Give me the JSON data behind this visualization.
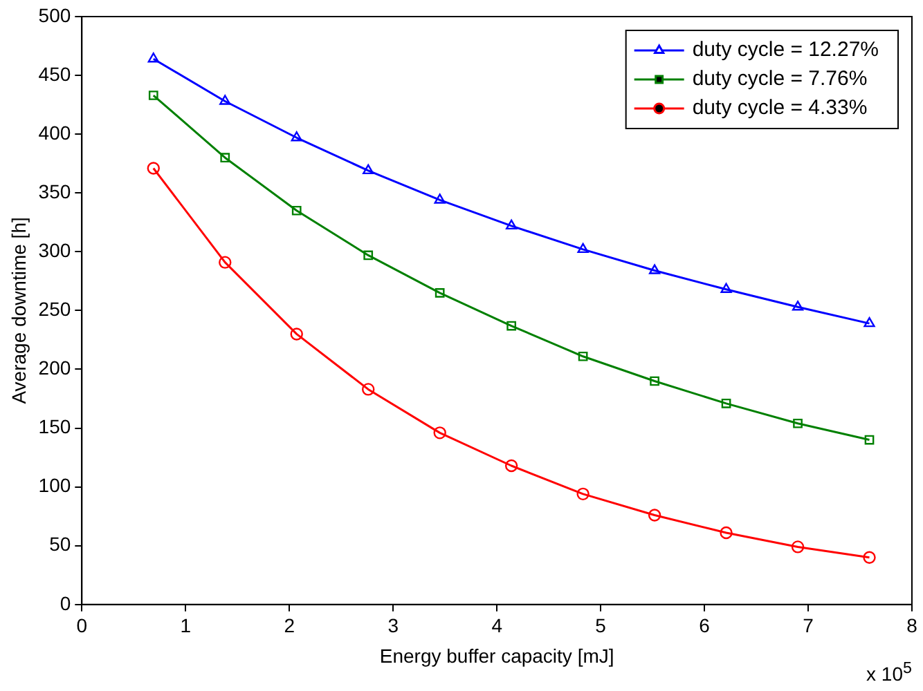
{
  "chart_data": {
    "type": "line",
    "xlabel": "Energy buffer capacity [mJ]",
    "ylabel": "Average downtime [h]",
    "x": [
      0.69,
      1.38,
      2.07,
      2.76,
      3.45,
      4.14,
      4.83,
      5.52,
      6.21,
      6.9,
      7.59
    ],
    "xlim": [
      0,
      8
    ],
    "xticks": [
      0,
      1,
      2,
      3,
      4,
      5,
      6,
      7,
      8
    ],
    "ylim": [
      0,
      500
    ],
    "yticks": [
      0,
      50,
      100,
      150,
      200,
      250,
      300,
      350,
      400,
      450,
      500
    ],
    "grid": false,
    "legend": "top right",
    "line_style": "solid",
    "annotations": [
      "x 10$^{5}$"
    ],
    "series": [
      {
        "name": "duty cycle = 12.27%",
        "color": "#0000ff",
        "marker": "triangle",
        "values": [
          464,
          428,
          397,
          369,
          344,
          322,
          302,
          284,
          268,
          253,
          239
        ]
      },
      {
        "name": "duty cycle = 7.76%",
        "color": "#008000",
        "marker": "square",
        "values": [
          433,
          380,
          335,
          297,
          265,
          237,
          211,
          190,
          171,
          154,
          140
        ]
      },
      {
        "name": "duty cycle = 4.33%",
        "color": "#ff0000",
        "marker": "circle",
        "values": [
          371,
          291,
          230,
          183,
          146,
          118,
          94,
          76,
          61,
          49,
          40
        ]
      }
    ]
  }
}
